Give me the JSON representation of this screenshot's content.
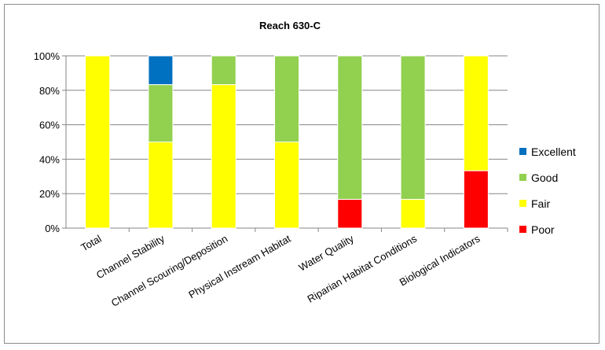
{
  "chart_data": {
    "type": "bar",
    "stacked": true,
    "percent": true,
    "title": "Reach 630-C",
    "xlabel": "",
    "ylabel": "",
    "ylim": [
      0,
      100
    ],
    "yticks": [
      "0%",
      "20%",
      "40%",
      "60%",
      "80%",
      "100%"
    ],
    "grid": true,
    "legend_position": "right",
    "categories": [
      "Total",
      "Channel Stability",
      "Channel Scouring/Deposition",
      "Physical Instream Habitat",
      "Water Quality",
      "Riparian Habitat Conditions",
      "Biological Indicators"
    ],
    "series": [
      {
        "name": "Poor",
        "color": "#ff0000",
        "values": [
          0,
          0,
          0,
          0,
          16.7,
          0,
          33.3
        ]
      },
      {
        "name": "Fair",
        "color": "#ffff00",
        "values": [
          100,
          50,
          83.3,
          50,
          0,
          16.7,
          66.7
        ]
      },
      {
        "name": "Good",
        "color": "#92d050",
        "values": [
          0,
          33.3,
          16.7,
          50,
          83.3,
          83.3,
          0
        ]
      },
      {
        "name": "Excellent",
        "color": "#0070c0",
        "values": [
          0,
          16.7,
          0,
          0,
          0,
          0,
          0
        ]
      }
    ],
    "legend_order": [
      "Excellent",
      "Good",
      "Fair",
      "Poor"
    ]
  }
}
